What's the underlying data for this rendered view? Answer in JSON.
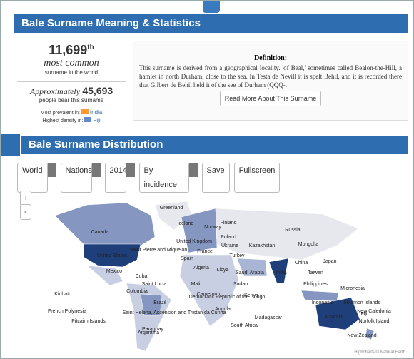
{
  "header": {
    "title": "Bale Surname Meaning & Statistics"
  },
  "stats": {
    "rank": "11,699",
    "rank_suffix": "th",
    "rank_caption": "most common",
    "rank_sub": "surname in the world",
    "approx": "Approximately",
    "count": "45,693",
    "count_sub": "people bear this surname",
    "prevalent_label": "Most prevalent in:",
    "prevalent_country": "India",
    "density_label": "Highest density in:",
    "density_country": "Fiji"
  },
  "definition": {
    "title": "Definition:",
    "text": "This surname is derived from a geographical locality. 'of Beal,' sometimes called Bealon-the-Hill, a hamlet in north Durham, close to the sea. In Testa de Nevill it is spelt Behil, and it is recorded there that Gilbert de Behil held it of the see of Durham (QQQ-.",
    "button": "Read More About This Surname"
  },
  "distribution": {
    "title": "Bale Surname Distribution",
    "controls": [
      "World",
      "Nations",
      "2014",
      "By incidence"
    ],
    "save": "Save",
    "fullscreen": "Fullscreen",
    "zoom_in": "+",
    "zoom_out": "-",
    "credit": "Highcharts © Natural Earth"
  },
  "map": {
    "labels": [
      "Greenland",
      "Iceland",
      "Finland",
      "Norway",
      "Russia",
      "Canada",
      "Poland",
      "United Kingdom",
      "Saint Pierre and Miquelon",
      "France",
      "Ukraine",
      "Kazakhstan",
      "Mongolia",
      "United States",
      "Spain",
      "Turkey",
      "China",
      "Japan",
      "Mexico",
      "Cuba",
      "Algeria",
      "Libya",
      "Saudi Arabia",
      "India",
      "Taiwan",
      "Saint Lucia",
      "Mali",
      "Sudan",
      "Philippines",
      "Colombia",
      "Cameroon",
      "Kenya",
      "Micronesia",
      "Kiribati",
      "Brazil",
      "Democratic Republic of the Congo",
      "Indonesia",
      "Solomon Islands",
      "French Polynesia",
      "Angola",
      "Saint Helena, Ascension and Tristan da Cunha",
      "Madagascar",
      "Fiji",
      "Pitcairn Islands",
      "Paraguay",
      "South Africa",
      "Australia",
      "New Caledonia",
      "Norfolk Island",
      "Argentina",
      "New Zealand"
    ]
  }
}
